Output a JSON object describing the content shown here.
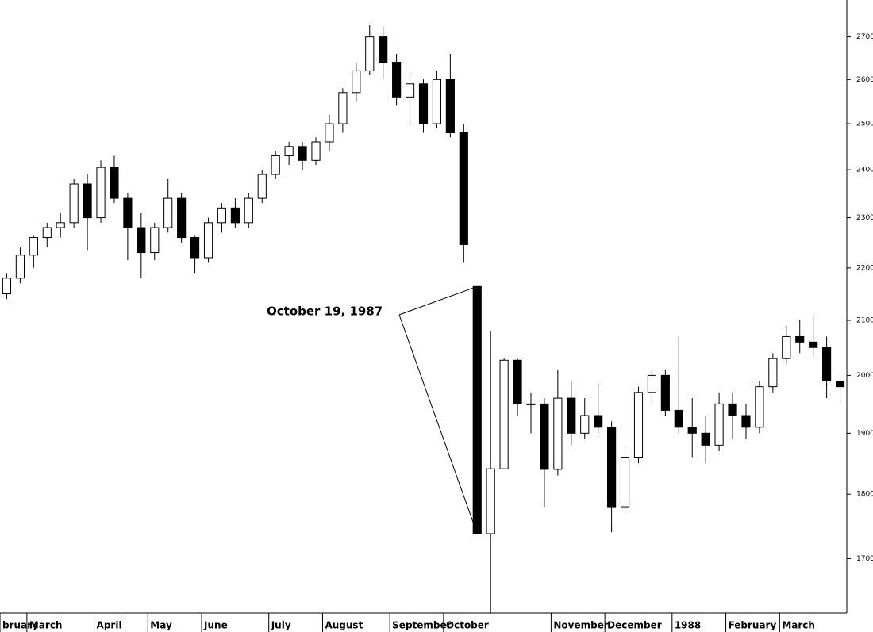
{
  "chart_data": {
    "type": "candlestick",
    "log_scale": true,
    "annotation": "October 19, 1987",
    "up_color": "#ffffff",
    "down_color": "#000000",
    "line_color": "#000000",
    "categories": [
      "bruary",
      null,
      "March",
      null,
      null,
      null,
      null,
      "April",
      null,
      null,
      null,
      "May",
      null,
      null,
      null,
      "June",
      null,
      null,
      null,
      null,
      "July",
      null,
      null,
      null,
      "August",
      null,
      null,
      null,
      null,
      "September",
      null,
      null,
      null,
      "October",
      null,
      null,
      null,
      null,
      null,
      null,
      null,
      "November",
      null,
      null,
      null,
      "December",
      null,
      null,
      null,
      null,
      "1988",
      null,
      null,
      null,
      "February",
      null,
      null,
      null,
      "March",
      null,
      null,
      null,
      null
    ],
    "open": [
      2150,
      2180,
      2225,
      2260,
      2280,
      2290,
      2370,
      2300,
      2405,
      2340,
      2280,
      2230,
      2280,
      2340,
      2260,
      2220,
      2290,
      2320,
      2290,
      2340,
      2390,
      2430,
      2450,
      2420,
      2460,
      2500,
      2570,
      2620,
      2700,
      2640,
      2560,
      2590,
      2500,
      2600,
      2480,
      2164,
      1738,
      1841,
      2027,
      1950,
      1950,
      1840,
      1960,
      1900,
      1930,
      1910,
      1780,
      1860,
      1970,
      2000,
      1939,
      1910,
      1900,
      1880,
      1950,
      1930,
      1910,
      1980,
      2030,
      2070,
      2060,
      2050,
      1990
    ],
    "high": [
      2190,
      2240,
      2265,
      2290,
      2310,
      2380,
      2390,
      2420,
      2430,
      2350,
      2310,
      2290,
      2380,
      2350,
      2265,
      2300,
      2330,
      2340,
      2350,
      2400,
      2440,
      2460,
      2460,
      2470,
      2520,
      2580,
      2640,
      2730,
      2725,
      2660,
      2620,
      2600,
      2620,
      2660,
      2500,
      2164,
      2080,
      2030,
      2030,
      1970,
      1960,
      2010,
      1990,
      1960,
      1985,
      1920,
      1880,
      1980,
      2010,
      2010,
      2070,
      1960,
      1930,
      1970,
      1970,
      1950,
      1990,
      2040,
      2090,
      2100,
      2110,
      2070,
      2000
    ],
    "low": [
      2140,
      2170,
      2200,
      2240,
      2260,
      2280,
      2235,
      2290,
      2330,
      2215,
      2180,
      2215,
      2270,
      2250,
      2190,
      2210,
      2270,
      2280,
      2280,
      2330,
      2380,
      2410,
      2400,
      2410,
      2440,
      2480,
      2550,
      2610,
      2600,
      2540,
      2500,
      2480,
      2490,
      2470,
      2210,
      1738,
      1620,
      1840,
      1930,
      1900,
      1780,
      1830,
      1880,
      1890,
      1900,
      1740,
      1770,
      1850,
      1950,
      1930,
      1900,
      1860,
      1850,
      1870,
      1890,
      1890,
      1900,
      1970,
      2020,
      2040,
      2030,
      1960,
      1950
    ],
    "close": [
      2180,
      2225,
      2260,
      2280,
      2290,
      2370,
      2300,
      2405,
      2340,
      2280,
      2230,
      2280,
      2340,
      2260,
      2220,
      2290,
      2320,
      2290,
      2340,
      2390,
      2430,
      2450,
      2420,
      2460,
      2500,
      2570,
      2620,
      2700,
      2640,
      2560,
      2590,
      2500,
      2600,
      2480,
      2246,
      1738,
      1841,
      2027,
      1950,
      1950,
      1840,
      1960,
      1900,
      1930,
      1910,
      1780,
      1860,
      1970,
      2000,
      1939,
      1910,
      1900,
      1880,
      1950,
      1930,
      1910,
      1980,
      2030,
      2070,
      2060,
      2050,
      1990,
      1980
    ],
    "ylim": [
      1620,
      2790
    ],
    "yticks": [
      1700,
      1800,
      1900,
      2000,
      2100,
      2200,
      2300,
      2400,
      2500,
      2600,
      2700
    ]
  }
}
